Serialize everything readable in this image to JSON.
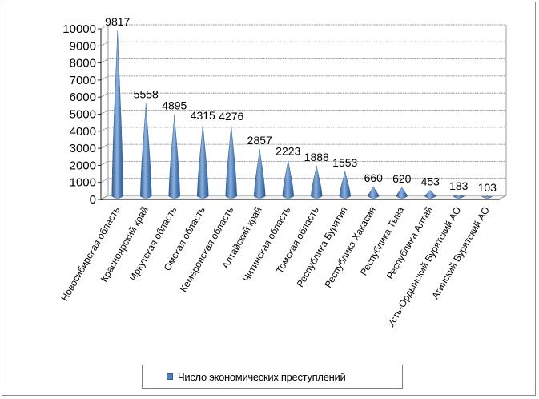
{
  "chart_data": {
    "type": "bar",
    "categories": [
      "Новосибирская область",
      "Красноярский край",
      "Иркутская область",
      "Омская область",
      "Кемеровская область",
      "Алтайский край",
      "Читинская область",
      "Томская область",
      "Республика Бурятия",
      "Республика Хакасия",
      "Республика Тыва",
      "Республика Алтай",
      "Усть-Ордынский Бурятский АО",
      "Агинский Бурятский АО"
    ],
    "series": [
      {
        "name": "Число экономических преступлений",
        "values": [
          9817,
          5558,
          4895,
          4315,
          4276,
          2857,
          2223,
          1888,
          1553,
          660,
          620,
          453,
          183,
          103
        ]
      }
    ],
    "data_labels": [
      "9817",
      "5558",
      "4895",
      "4315",
      "4276",
      "2857",
      "2223",
      "1888",
      "1553",
      "660",
      "620",
      "453",
      "183",
      "103"
    ],
    "y_ticks": [
      "0",
      "1000",
      "2000",
      "3000",
      "4000",
      "5000",
      "6000",
      "7000",
      "8000",
      "9000",
      "10000"
    ],
    "ylim": [
      0,
      10000
    ],
    "grid": true,
    "legend_position": "bottom",
    "colors": {
      "bar": "#4f81bd",
      "bar_dark": "#2f5a8f",
      "bar_light": "#8fb2dd",
      "grid": "#7f7f7f"
    }
  }
}
